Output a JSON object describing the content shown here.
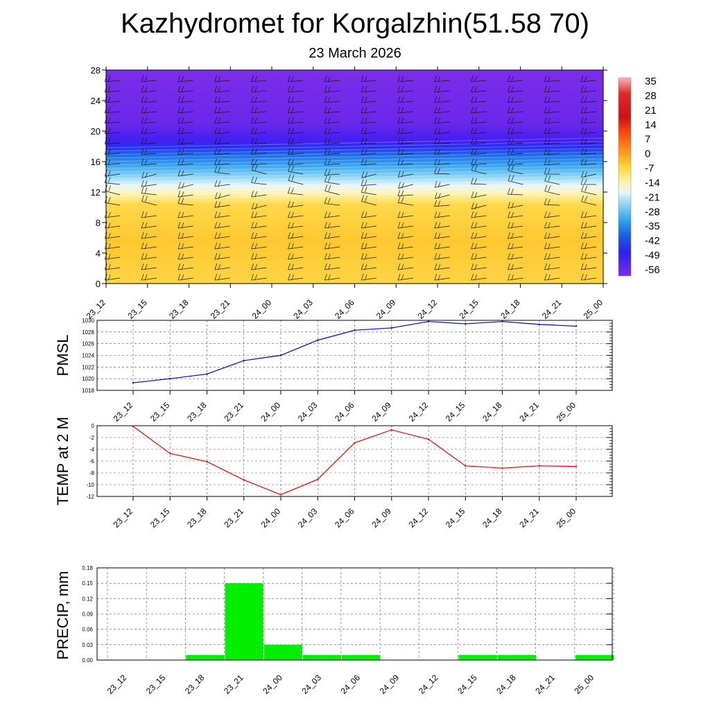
{
  "title": "Kazhydromet for Korgalzhin(51.58 70)",
  "subtitle": "23 March 2026",
  "chart_data": [
    {
      "type": "heatmap",
      "name": "vertical-cross-section",
      "ylim": [
        0,
        28
      ],
      "yticks": [
        "0",
        "4",
        "8",
        "12",
        "16",
        "20",
        "24",
        "28"
      ],
      "x": [
        "23_12",
        "23_15",
        "23_18",
        "23_21",
        "24_00",
        "24_03",
        "24_06",
        "24_09",
        "24_12",
        "24_15",
        "24_18",
        "24_21",
        "25_00"
      ],
      "colorbar": {
        "labels": [
          "35",
          "28",
          "21",
          "14",
          "7",
          "0",
          "-7",
          "-14",
          "-21",
          "-28",
          "-35",
          "-42",
          "-49",
          "-56"
        ],
        "min": -60,
        "max": 38
      },
      "wind_barbs": true
    },
    {
      "type": "line",
      "ylabel": "PMSL",
      "ylim": [
        1018,
        1030
      ],
      "yticks": [
        "1018",
        "1020",
        "1022",
        "1024",
        "1026",
        "1028",
        "1030"
      ],
      "x": [
        "23_12",
        "23_15",
        "23_18",
        "23_21",
        "24_00",
        "24_03",
        "24_06",
        "24_09",
        "24_12",
        "24_15",
        "24_18",
        "24_21",
        "25_00"
      ],
      "values": [
        1019.3,
        1020.0,
        1020.8,
        1023.1,
        1024.0,
        1026.6,
        1028.3,
        1028.7,
        1029.8,
        1029.4,
        1029.8,
        1029.3,
        1029.0
      ],
      "color": "#0000cc",
      "grid": true
    },
    {
      "type": "line",
      "ylabel": "TEMP at 2 M",
      "ylim": [
        -12,
        0
      ],
      "yticks": [
        "-12",
        "-10",
        "-8",
        "-6",
        "-4",
        "-2",
        "0"
      ],
      "x": [
        "23_12",
        "23_15",
        "23_18",
        "23_21",
        "24_00",
        "24_03",
        "24_06",
        "24_09",
        "24_12",
        "24_15",
        "24_18",
        "24_21",
        "25_00"
      ],
      "values": [
        -0.1,
        -4.7,
        -6.1,
        -9.2,
        -11.7,
        -9.1,
        -2.9,
        -0.7,
        -2.3,
        -6.8,
        -7.2,
        -6.8,
        -6.9
      ],
      "color": "#ee0000",
      "grid": true
    },
    {
      "type": "bar",
      "ylabel": "PRECIP, mm",
      "ylim": [
        0,
        0.18
      ],
      "yticks": [
        "0.00",
        "0.03",
        "0.06",
        "0.09",
        "0.12",
        "0.15",
        "0.18"
      ],
      "categories": [
        "23_12",
        "23_15",
        "23_18",
        "23_21",
        "24_00",
        "24_03",
        "24_06",
        "24_09",
        "24_12",
        "24_15",
        "24_18",
        "24_21",
        "25_00"
      ],
      "values": [
        0,
        0,
        0.01,
        0.15,
        0.03,
        0.01,
        0.01,
        0,
        0,
        0.01,
        0.01,
        0,
        0.01
      ],
      "color": "#00ee00",
      "grid": true
    }
  ]
}
